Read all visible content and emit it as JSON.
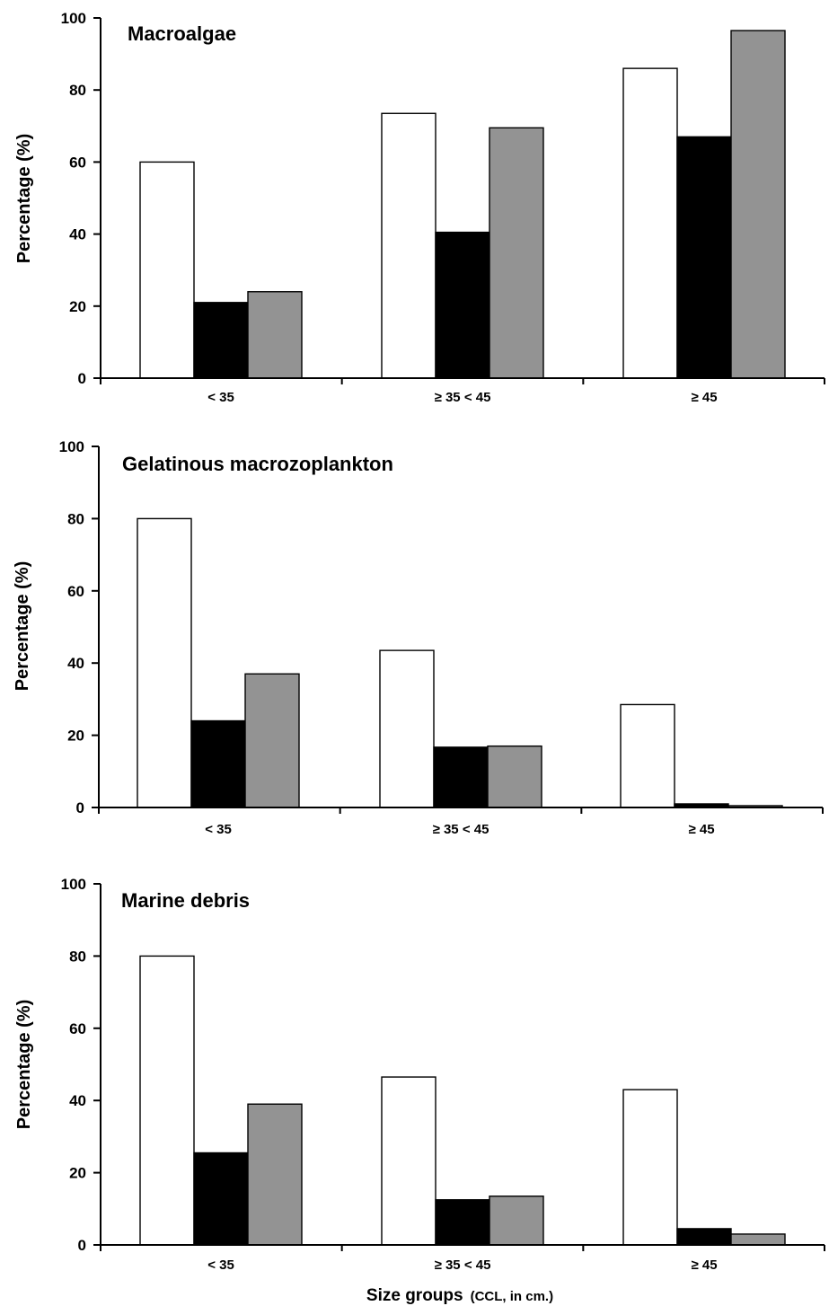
{
  "chart_data": [
    {
      "type": "bar",
      "title": "Macroalgae",
      "ylabel": "Percentage  (%)",
      "ylim": [
        0,
        100
      ],
      "yticks": [
        0,
        20,
        40,
        60,
        80,
        100
      ],
      "categories": [
        "< 35",
        "≥  35 < 45",
        "≥ 45"
      ],
      "series": [
        {
          "values": [
            60,
            73.5,
            86
          ],
          "color": "#ffffff"
        },
        {
          "values": [
            21,
            40.5,
            67
          ],
          "color": "#000000"
        },
        {
          "values": [
            24,
            69.5,
            96.5
          ],
          "color": "#939393"
        }
      ],
      "grid": false
    },
    {
      "type": "bar",
      "title": "Gelatinous macrozoplankton",
      "ylabel": "Percentage  (%)",
      "ylim": [
        0,
        100
      ],
      "yticks": [
        0,
        20,
        40,
        60,
        80,
        100
      ],
      "categories": [
        "< 35",
        "≥  35 < 45",
        "≥ 45"
      ],
      "series": [
        {
          "values": [
            80,
            43.5,
            28.5
          ],
          "color": "#ffffff"
        },
        {
          "values": [
            24,
            16.7,
            1
          ],
          "color": "#000000"
        },
        {
          "values": [
            37,
            17,
            0.5
          ],
          "color": "#939393"
        }
      ],
      "grid": false
    },
    {
      "type": "bar",
      "title": "Marine debris",
      "ylabel": "Percentage  (%)",
      "ylim": [
        0,
        100
      ],
      "yticks": [
        0,
        20,
        40,
        60,
        80,
        100
      ],
      "categories": [
        "< 35",
        "≥  35 < 45",
        "≥ 45"
      ],
      "series": [
        {
          "values": [
            80,
            46.5,
            43
          ],
          "color": "#ffffff"
        },
        {
          "values": [
            25.5,
            12.5,
            4.5
          ],
          "color": "#000000"
        },
        {
          "values": [
            39,
            13.5,
            3
          ],
          "color": "#939393"
        }
      ],
      "grid": false
    }
  ],
  "xlabel": {
    "main": "Size groups",
    "sub": "(CCL, in cm.)"
  }
}
